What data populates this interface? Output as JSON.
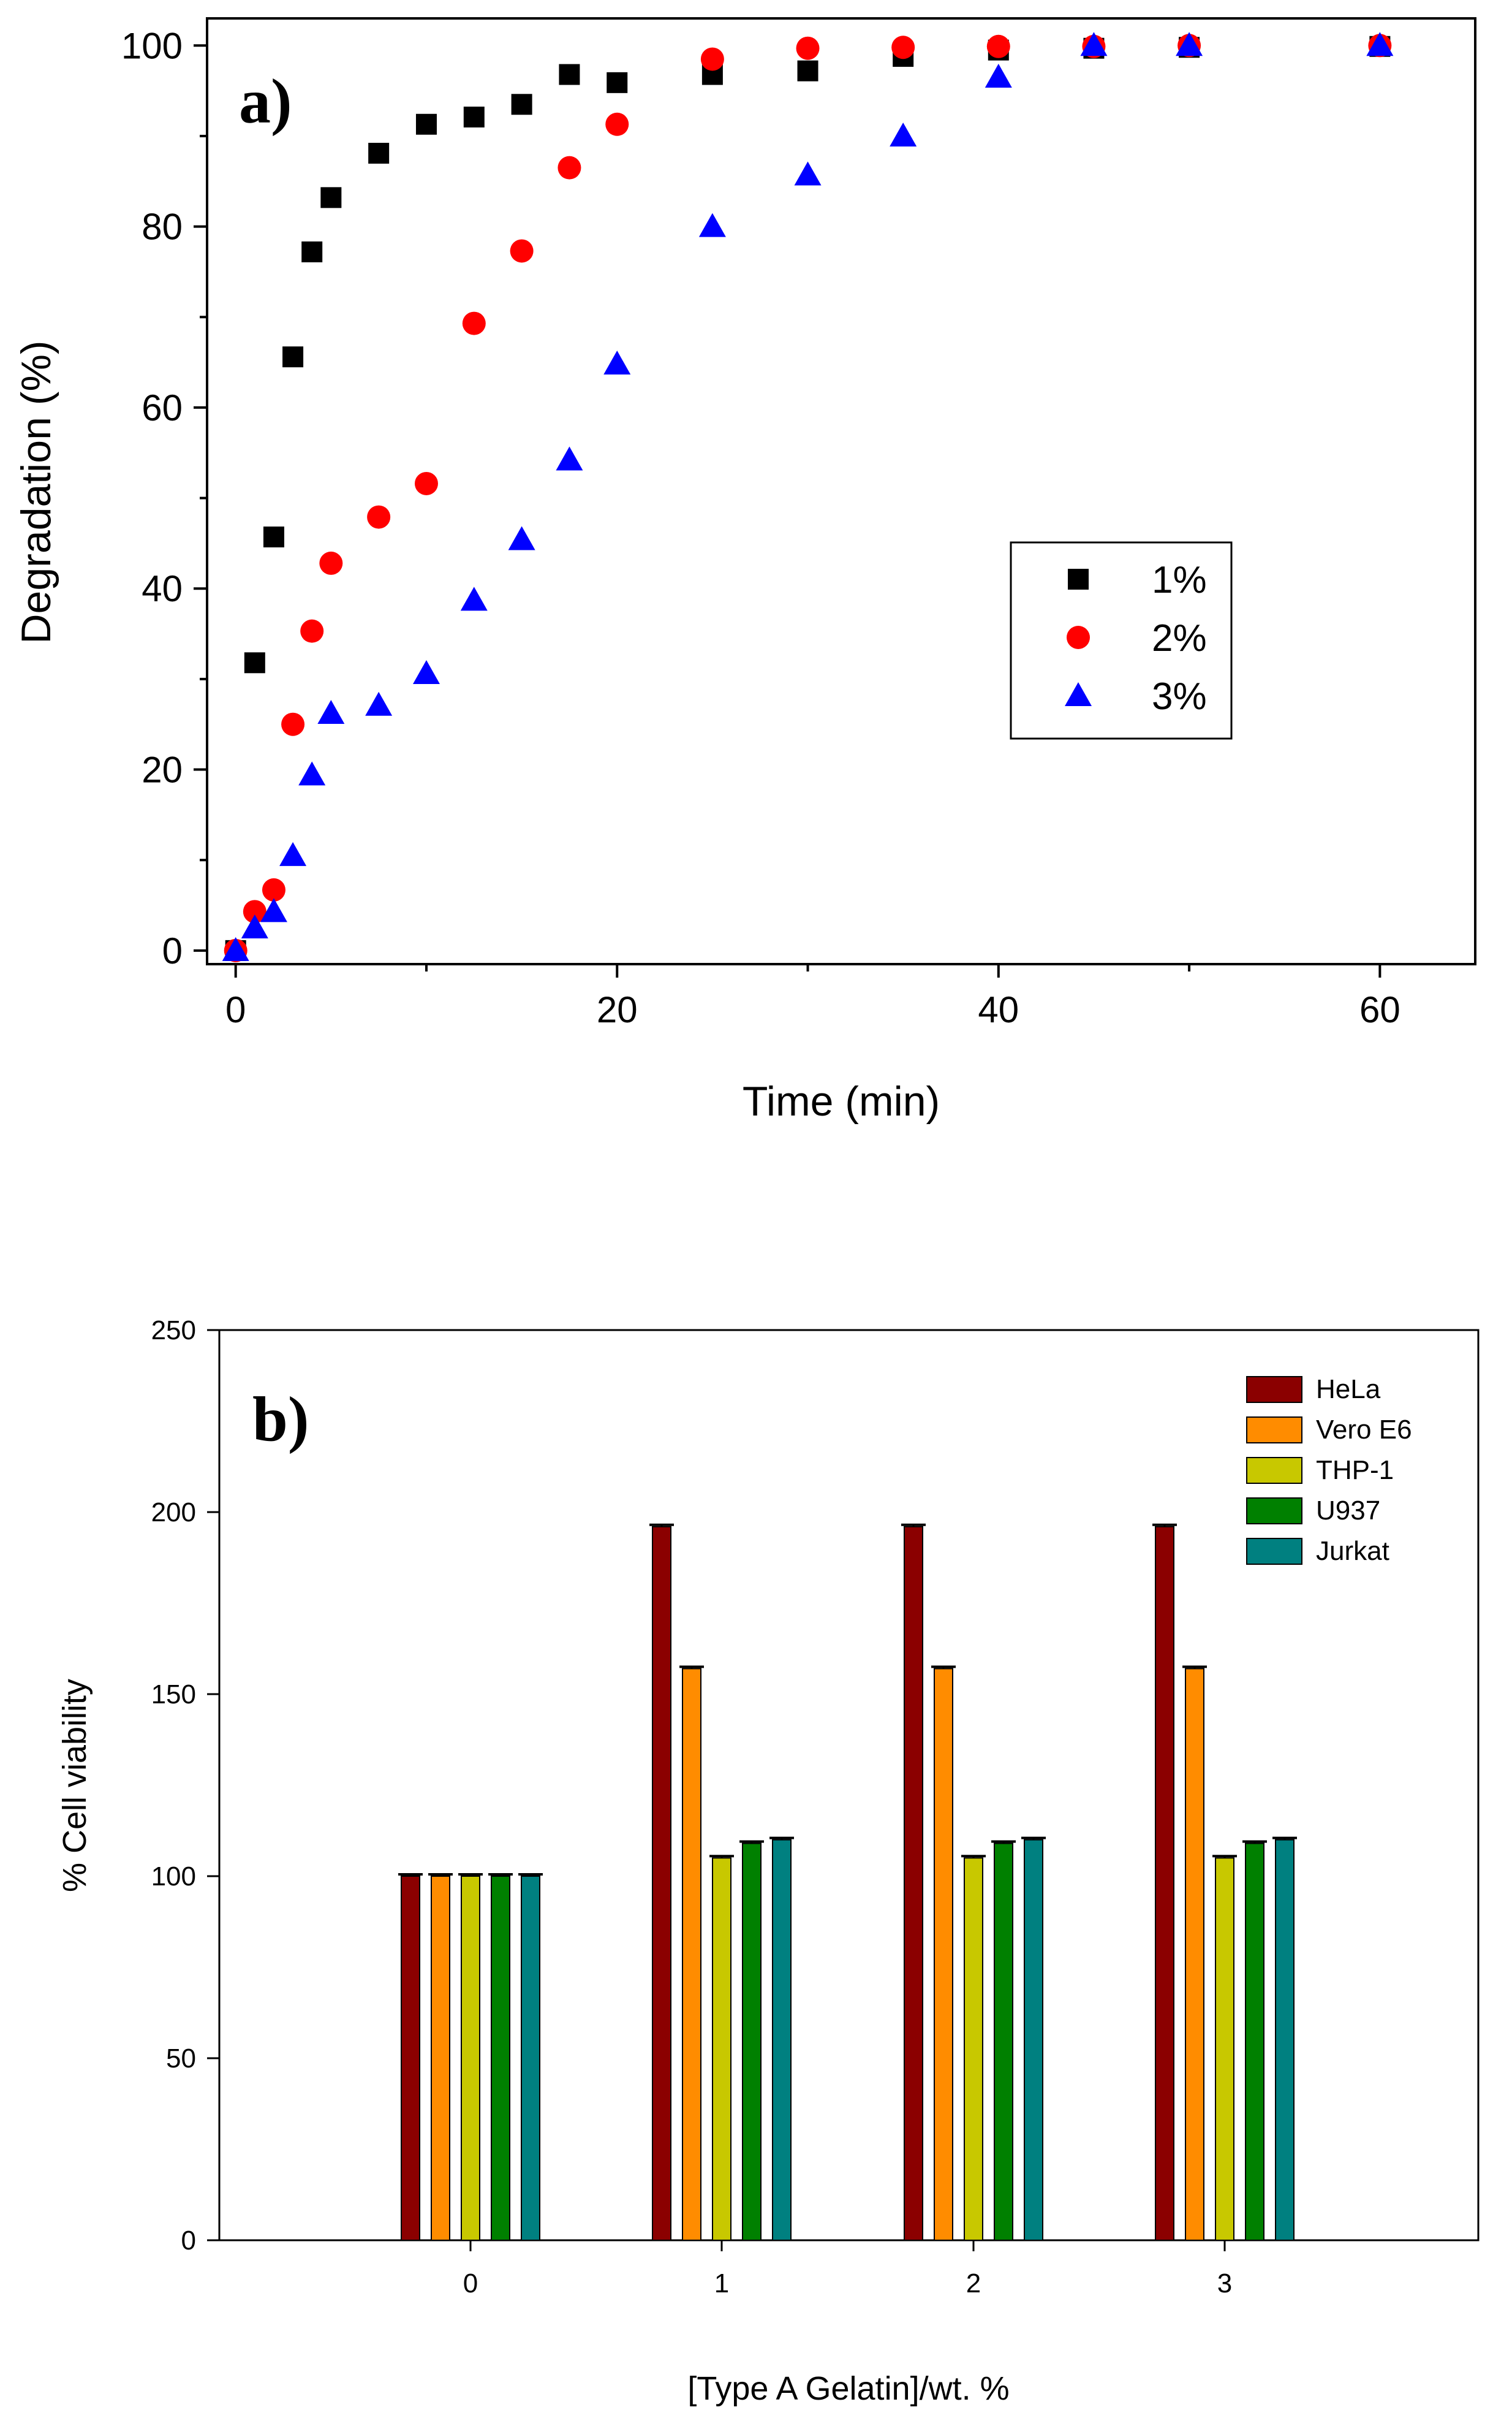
{
  "chart_data": [
    {
      "panel": "a)",
      "type": "scatter",
      "title": "",
      "xlabel": "Time (min)",
      "ylabel": "Degradation (%)",
      "xlim": [
        -1.5,
        65
      ],
      "ylim": [
        -1.5,
        103
      ],
      "xticks": [
        "0",
        "20",
        "40",
        "60"
      ],
      "yticks": [
        "0",
        "20",
        "40",
        "60",
        "80",
        "100"
      ],
      "legend_position": "middle-right",
      "series": [
        {
          "name": "1%",
          "marker": "square",
          "color": "#000000",
          "x": [
            0,
            1,
            2,
            3,
            4,
            5,
            7.5,
            10,
            12.5,
            15,
            17.5,
            20,
            25,
            30,
            35,
            40,
            45,
            50,
            60
          ],
          "y": [
            0,
            31.8,
            45.7,
            65.6,
            77.2,
            83.2,
            88.1,
            91.3,
            92.1,
            93.5,
            96.8,
            95.9,
            96.8,
            97.2,
            98.8,
            99.5,
            99.7,
            99.8,
            99.9
          ]
        },
        {
          "name": "2%",
          "marker": "circle",
          "color": "#ff0000",
          "x": [
            0,
            1,
            2,
            3,
            4,
            5,
            7.5,
            10,
            12.5,
            15,
            17.5,
            20,
            25,
            30,
            35,
            40,
            45,
            50,
            60
          ],
          "y": [
            0,
            4.3,
            6.7,
            25.0,
            35.3,
            42.8,
            47.9,
            51.6,
            69.3,
            77.3,
            86.5,
            91.3,
            98.5,
            99.7,
            99.8,
            99.9,
            99.9,
            100,
            100
          ]
        },
        {
          "name": "3%",
          "marker": "triangle",
          "color": "#0000ff",
          "x": [
            0,
            1,
            2,
            3,
            4,
            5,
            7.5,
            10,
            12.5,
            15,
            17.5,
            20,
            25,
            30,
            35,
            40,
            45,
            50,
            60
          ],
          "y": [
            0,
            2.5,
            4.3,
            10.5,
            19.4,
            26.2,
            27.1,
            30.6,
            38.7,
            45.4,
            54.2,
            64.8,
            80.0,
            85.7,
            90.0,
            96.5,
            100,
            100,
            100
          ]
        }
      ]
    },
    {
      "panel": "b)",
      "type": "bar",
      "title": "",
      "xlabel": "[Type A Gelatin]/wt. %",
      "ylabel": "% Cell viability",
      "categories": [
        "0",
        "1",
        "2",
        "3"
      ],
      "ylim": [
        0,
        250
      ],
      "yticks": [
        "0",
        "50",
        "100",
        "150",
        "200",
        "250"
      ],
      "error_bars": true,
      "legend_position": "top-right",
      "series": [
        {
          "name": "HeLa",
          "color": "#8b0000",
          "values": [
            100,
            196,
            196,
            196
          ]
        },
        {
          "name": "Vero E6",
          "color": "#ff8c00",
          "values": [
            100,
            157,
            157,
            157
          ]
        },
        {
          "name": "THP-1",
          "color": "#c8c800",
          "values": [
            100,
            105,
            105,
            105
          ]
        },
        {
          "name": "U937",
          "color": "#008000",
          "values": [
            100,
            109,
            109,
            109
          ]
        },
        {
          "name": "Jurkat",
          "color": "#008080",
          "values": [
            100,
            110,
            110,
            110
          ]
        }
      ]
    }
  ]
}
